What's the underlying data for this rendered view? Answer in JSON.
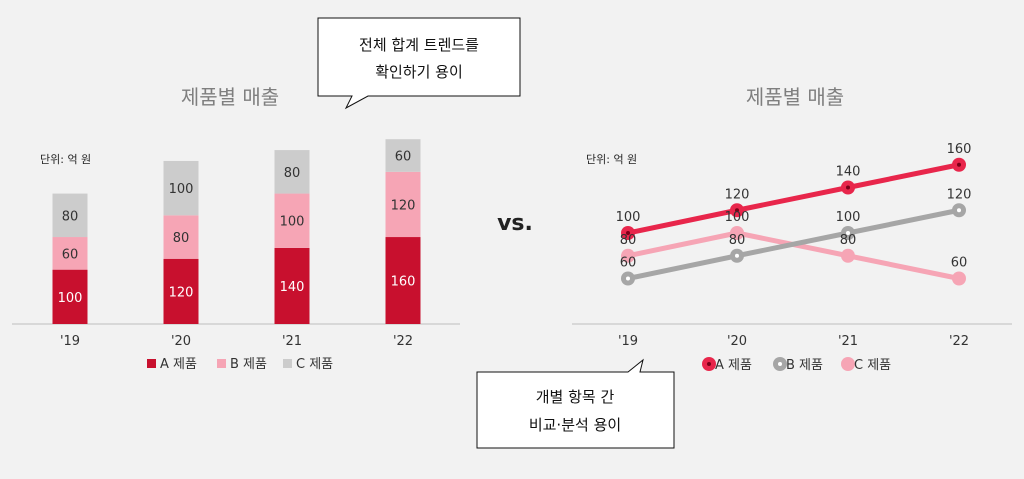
{
  "callouts": {
    "top": [
      "전체 합계 트렌드를",
      "확인하기 용이"
    ],
    "bottom": [
      "개별 항목 간",
      "비교·분석 용이"
    ]
  },
  "vs_label": "vs.",
  "colors": {
    "A": "#c8102e",
    "B": "#f6a5b5",
    "C": "#cccccc",
    "lineA": "#e8264b",
    "lineB": "#a6a6a6",
    "lineC": "#f6a5b5"
  },
  "chart_data": [
    {
      "type": "bar",
      "stacked": true,
      "title": "제품별 매출",
      "unit_label": "단위: 억 원",
      "categories": [
        "'19",
        "'20",
        "'21",
        "'22"
      ],
      "series": [
        {
          "name": "A 제품",
          "values": [
            100,
            120,
            140,
            160
          ]
        },
        {
          "name": "B 제품",
          "values": [
            60,
            80,
            100,
            120
          ]
        },
        {
          "name": "C 제품",
          "values": [
            80,
            100,
            80,
            60
          ]
        }
      ],
      "legend": "bottom"
    },
    {
      "type": "line",
      "title": "제품별 매출",
      "unit_label": "단위: 억 원",
      "categories": [
        "'19",
        "'20",
        "'21",
        "'22"
      ],
      "series": [
        {
          "name": "A 제품",
          "values": [
            100,
            120,
            140,
            160
          ]
        },
        {
          "name": "B 제품",
          "values": [
            60,
            80,
            100,
            120
          ]
        },
        {
          "name": "C 제품",
          "values": [
            80,
            100,
            80,
            60
          ]
        }
      ],
      "legend": "bottom"
    }
  ]
}
